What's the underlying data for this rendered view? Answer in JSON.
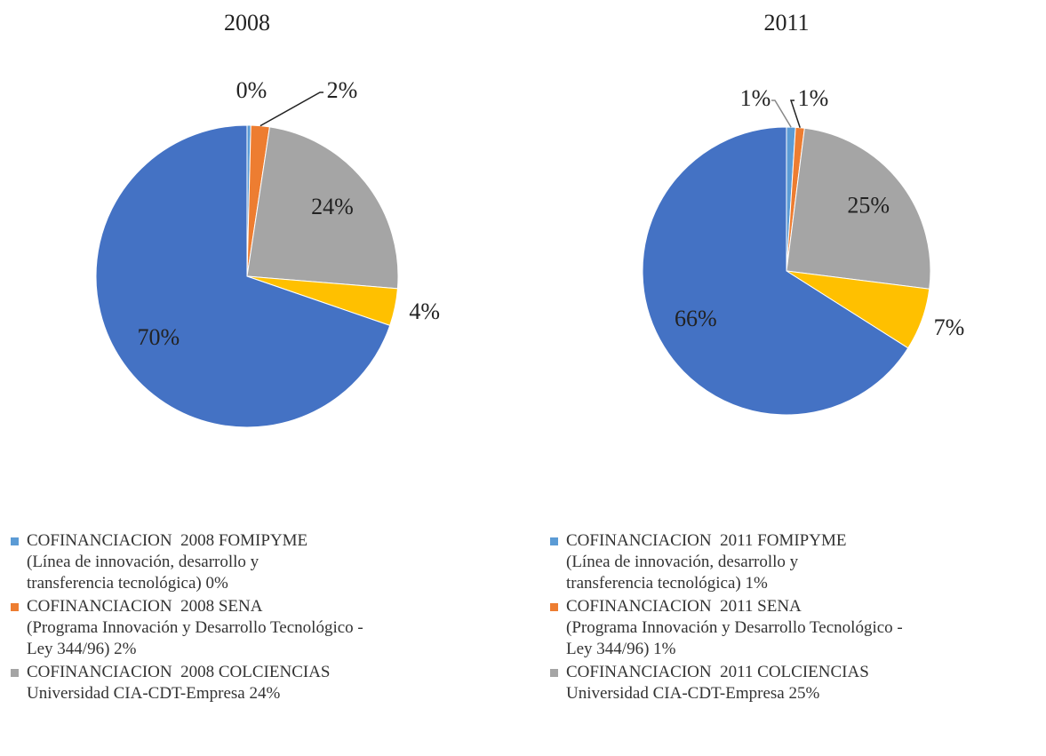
{
  "chart_data": [
    {
      "type": "pie",
      "title": "2008",
      "categories": [
        "COFINANCIACION  2008 FOMIPYME\n(Línea de innovación, desarrollo y\ntransferencia tecnológica) 0%",
        "COFINANCIACION  2008 SENA\n(Programa Innovación y Desarrollo Tecnológico -\nLey 344/96) 2%",
        "COFINANCIACION  2008 COLCIENCIAS\nUniversidad CIA-CDT-Empresa 24%",
        null,
        null
      ],
      "values": [
        0.4,
        2,
        24,
        4,
        70
      ],
      "value_labels": [
        "0%",
        "2%",
        "24%",
        "4%",
        "70%"
      ],
      "colors": [
        "#5b9bd5",
        "#ed7d31",
        "#a5a5a5",
        "#ffc000",
        "#4472c4"
      ]
    },
    {
      "type": "pie",
      "title": "2011",
      "categories": [
        "COFINANCIACION  2011 FOMIPYME\n(Línea de innovación, desarrollo y\ntransferencia tecnológica) 1%",
        "COFINANCIACION  2011 SENA\n(Programa Innovación y Desarrollo Tecnológico -\nLey 344/96) 1%",
        "COFINANCIACION  2011 COLCIENCIAS\nUniversidad CIA-CDT-Empresa 25%",
        null,
        null
      ],
      "values": [
        1,
        1,
        25,
        7,
        66
      ],
      "value_labels": [
        "1%",
        "1%",
        "25%",
        "7%",
        "66%"
      ],
      "colors": [
        "#5b9bd5",
        "#ed7d31",
        "#a5a5a5",
        "#ffc000",
        "#4472c4"
      ]
    }
  ]
}
